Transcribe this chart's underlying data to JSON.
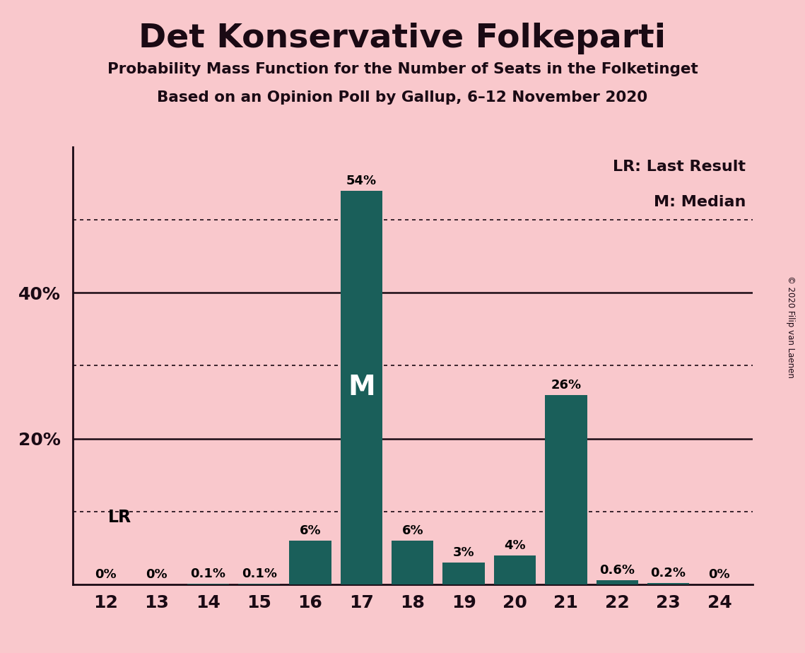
{
  "title": "Det Konservative Folkeparti",
  "subtitle1": "Probability Mass Function for the Number of Seats in the Folketinget",
  "subtitle2": "Based on an Opinion Poll by Gallup, 6–12 November 2020",
  "copyright": "© 2020 Filip van Laenen",
  "categories": [
    12,
    13,
    14,
    15,
    16,
    17,
    18,
    19,
    20,
    21,
    22,
    23,
    24
  ],
  "values": [
    0.0,
    0.0,
    0.1,
    0.1,
    6.0,
    54.0,
    6.0,
    3.0,
    4.0,
    26.0,
    0.6,
    0.2,
    0.0
  ],
  "labels": [
    "0%",
    "0%",
    "0.1%",
    "0.1%",
    "6%",
    "54%",
    "6%",
    "3%",
    "4%",
    "26%",
    "0.6%",
    "0.2%",
    "0%"
  ],
  "bar_color": "#1a5f5a",
  "background_color": "#f9c8cc",
  "median_seat": 17,
  "lr_seat": 12,
  "ylim": [
    0,
    60
  ],
  "solid_yticks": [
    20,
    40
  ],
  "dotted_yticks": [
    10,
    30,
    50
  ],
  "legend_lr": "LR: Last Result",
  "legend_m": "M: Median",
  "lr_label": "LR",
  "m_label": "M"
}
